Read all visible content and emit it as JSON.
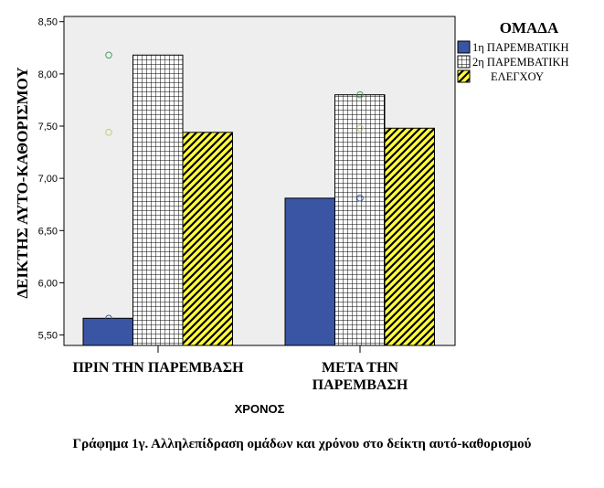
{
  "chart_data": {
    "type": "bar",
    "title": "",
    "ylabel": "ΔΕΙΚΤΗΣ ΑΥΤΟ-ΚΑΘΟΡΙΣΜΟΥ",
    "xlabel": "ΧΡΟΝΟΣ",
    "ylim": [
      5.4,
      8.55
    ],
    "yticks": [
      "5,50",
      "6,00",
      "6,50",
      "7,00",
      "7,50",
      "8,00",
      "8,50"
    ],
    "ytick_values": [
      5.5,
      6.0,
      6.5,
      7.0,
      7.5,
      8.0,
      8.5
    ],
    "categories": [
      [
        "ΠΡΙΝ ΤΗΝ ΠΑΡΕΜΒΑΣΗ"
      ],
      [
        "ΜΕΤΑ ΤΗΝ",
        "ΠΑΡΕΜΒΑΣΗ"
      ]
    ],
    "series": [
      {
        "name": "1η ΠΑΡΕΜΒΑΤΙΚΗ",
        "values": [
          5.66,
          6.81
        ],
        "color": "#3a55a4",
        "pattern": "solid"
      },
      {
        "name": "2η ΠΑΡΕΜΒΑΤΙΚΗ",
        "values": [
          8.18,
          7.8
        ],
        "color": "#000000",
        "pattern": "grid"
      },
      {
        "name": "ΕΛΕΓΧΟΥ",
        "values": [
          7.44,
          7.48
        ],
        "color": "#fffb3d",
        "pattern": "diagonal"
      }
    ],
    "outlier_markers": [
      {
        "category": 0,
        "value": 8.18,
        "color": "#3aa55a"
      },
      {
        "category": 0,
        "value": 7.44,
        "color": "#c8c87a"
      },
      {
        "category": 0,
        "value": 5.66,
        "color": "#3a55a4"
      },
      {
        "category": 1,
        "value": 7.8,
        "color": "#3aa55a"
      },
      {
        "category": 1,
        "value": 7.48,
        "color": "#c8c87a"
      },
      {
        "category": 1,
        "value": 6.81,
        "color": "#3a55a4"
      }
    ],
    "legend_title": "ΟΜΑΔΑ",
    "legend_position": "top-right",
    "plot_background": "#eeeeee",
    "grid": false
  },
  "caption": "Γράφημα 1γ. Αλληλεπίδραση ομάδων και χρόνου στο δείκτη αυτό-καθορισμού"
}
